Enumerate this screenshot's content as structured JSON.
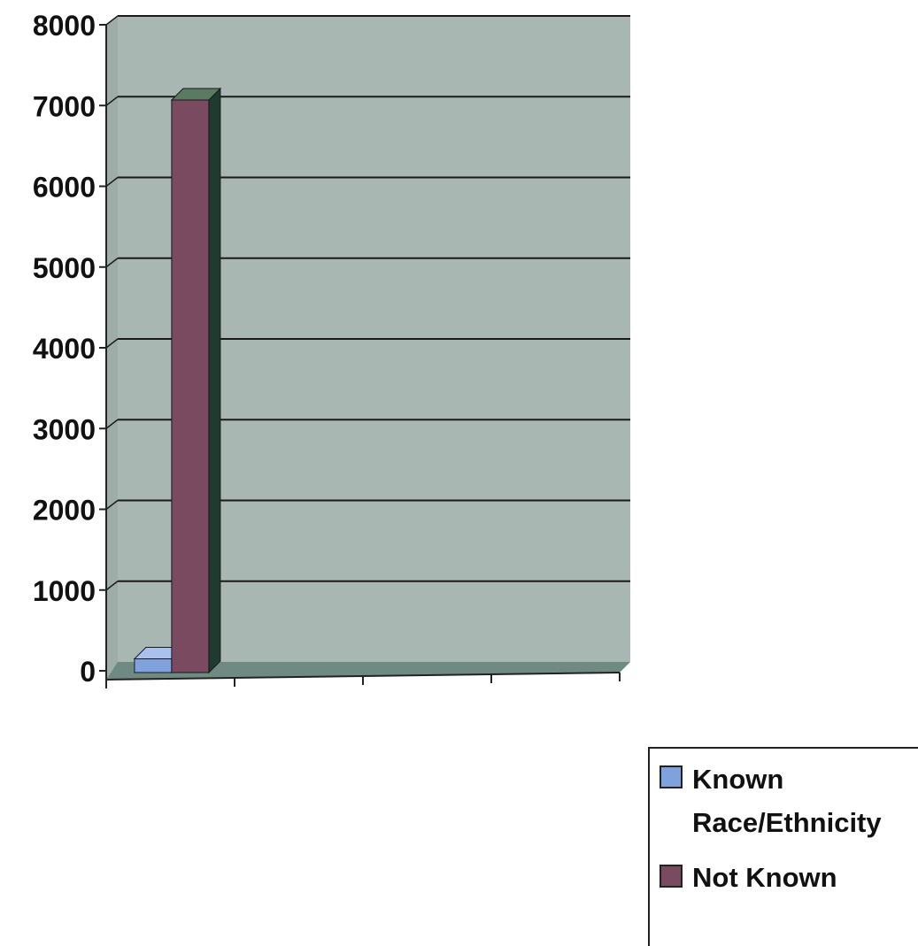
{
  "chart_data": {
    "type": "bar",
    "title": "",
    "xlabel": "",
    "ylabel": "",
    "ylim": [
      0,
      8000
    ],
    "yticks": [
      0,
      1000,
      2000,
      3000,
      4000,
      5000,
      6000,
      7000,
      8000
    ],
    "x_category_slots": 4,
    "categories": [
      ""
    ],
    "series": [
      {
        "name": "Known Race/Ethnicity",
        "values": [
          170
        ]
      },
      {
        "name": "Not Known",
        "values": [
          7100
        ]
      }
    ],
    "grid": true,
    "legend_position": "bottom-right",
    "style": "3d-column",
    "colors": {
      "plot_bg": "#a9b7b3",
      "wall_side": "#9fadaa",
      "floor": "#6f8a83",
      "gridline": "#1a1a1a",
      "series": [
        "#7fa2df",
        "#7a4a60"
      ],
      "series_side": [
        "#4d6fa8",
        "#1f3a2e"
      ],
      "series_top": [
        "#a9c1ec",
        "#5a7a62"
      ]
    }
  },
  "legend": {
    "items": [
      {
        "lines": [
          "Known",
          "Race/Ethnicity"
        ]
      },
      {
        "lines": [
          "Not Known"
        ]
      }
    ]
  }
}
